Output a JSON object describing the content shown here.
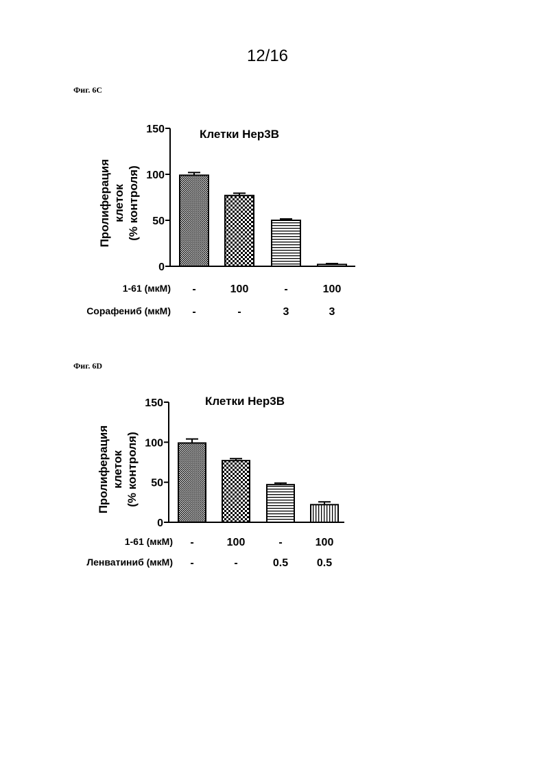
{
  "page_number": "12/16",
  "figures": [
    {
      "label": "Фиг. 6С",
      "chart_data": {
        "type": "bar",
        "title": "Клетки Hep3B",
        "ylabel_lines": [
          "Пролиферация",
          "клеток",
          "(% контроля)"
        ],
        "ylim": [
          0,
          150
        ],
        "yticks": [
          0,
          50,
          100,
          150
        ],
        "values": [
          99,
          77,
          50,
          2
        ],
        "errors": [
          3,
          2.5,
          1.5,
          1
        ],
        "patterns": [
          "dense-dots",
          "checker",
          "horizontal",
          "solid-white"
        ],
        "rows": [
          {
            "label": "1-61 (мкМ)",
            "values": [
              "-",
              "100",
              "-",
              "100"
            ]
          },
          {
            "label": "Сорафениб (мкМ)",
            "values": [
              "-",
              "-",
              "3",
              "3"
            ]
          }
        ]
      }
    },
    {
      "label": "Фиг. 6D",
      "chart_data": {
        "type": "bar",
        "title": "Клетки Hep3B",
        "ylabel_lines": [
          "Пролиферация",
          "клеток",
          "(% контроля)"
        ],
        "ylim": [
          0,
          150
        ],
        "yticks": [
          0,
          50,
          100,
          150
        ],
        "values": [
          99,
          77,
          47,
          22
        ],
        "errors": [
          5,
          2.5,
          2,
          3.5
        ],
        "patterns": [
          "dense-dots",
          "checker",
          "horizontal",
          "vertical"
        ],
        "rows": [
          {
            "label": "1-61 (мкМ)",
            "values": [
              "-",
              "100",
              "-",
              "100"
            ]
          },
          {
            "label": "Ленватиниб (мкМ)",
            "values": [
              "-",
              "-",
              "0.5",
              "0.5"
            ]
          }
        ]
      }
    }
  ]
}
